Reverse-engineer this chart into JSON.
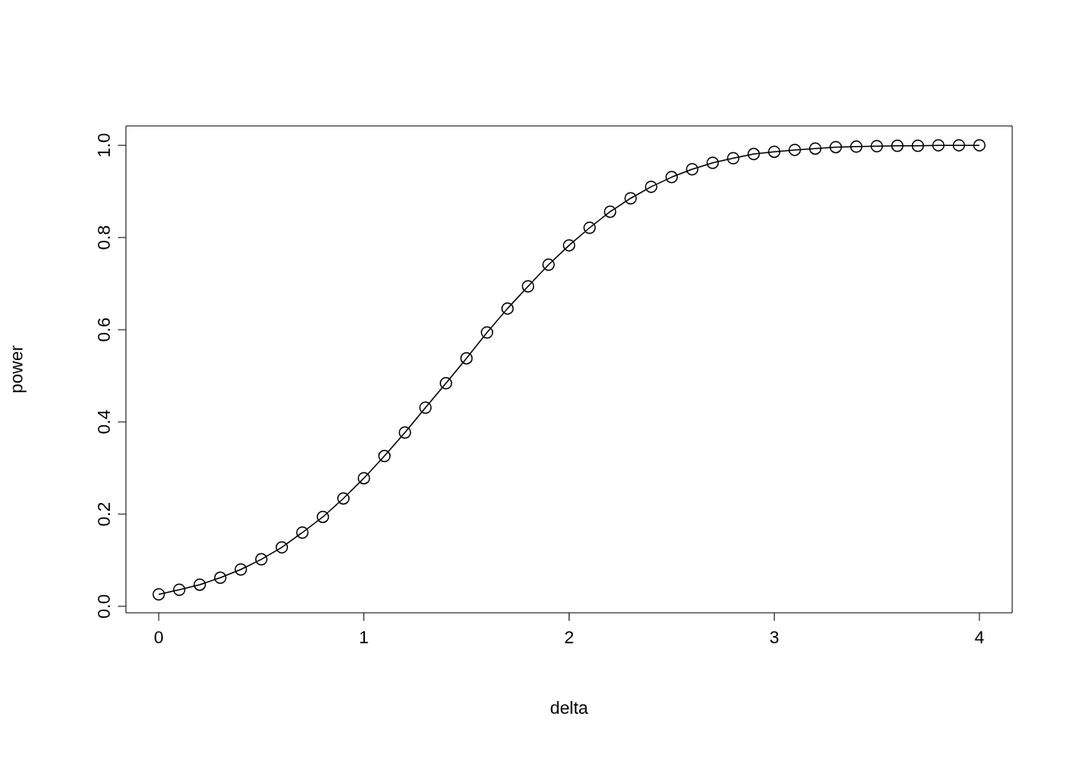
{
  "chart_data": {
    "type": "line",
    "xlabel": "delta",
    "ylabel": "power",
    "marker": "circle",
    "line_style": "solid",
    "color": "#000000",
    "x": [
      0,
      0.1,
      0.2,
      0.3,
      0.4,
      0.5,
      0.6,
      0.7,
      0.8,
      0.9,
      1.0,
      1.1,
      1.2,
      1.3,
      1.4,
      1.5,
      1.6,
      1.7,
      1.8,
      1.9,
      2.0,
      2.1,
      2.2,
      2.3,
      2.4,
      2.5,
      2.6,
      2.7,
      2.8,
      2.9,
      3.0,
      3.1,
      3.2,
      3.3,
      3.4,
      3.5,
      3.6,
      3.7,
      3.8,
      3.9,
      4.0
    ],
    "values": [
      0.026,
      0.036,
      0.047,
      0.062,
      0.08,
      0.102,
      0.128,
      0.16,
      0.194,
      0.234,
      0.278,
      0.326,
      0.377,
      0.431,
      0.484,
      0.538,
      0.594,
      0.646,
      0.694,
      0.741,
      0.783,
      0.821,
      0.856,
      0.885,
      0.91,
      0.931,
      0.948,
      0.962,
      0.972,
      0.981,
      0.986,
      0.99,
      0.993,
      0.996,
      0.997,
      0.998,
      0.999,
      0.999,
      1.0,
      1.0,
      1.0
    ],
    "xlim": [
      -0.16,
      4.16
    ],
    "ylim": [
      -0.014,
      1.042
    ],
    "xticks": [
      0,
      1,
      2,
      3,
      4
    ],
    "yticks": [
      {
        "value": 0,
        "label": "0.0"
      },
      0.2,
      0.4,
      0.6,
      0.8,
      {
        "value": 1,
        "label": "1.0"
      }
    ]
  }
}
